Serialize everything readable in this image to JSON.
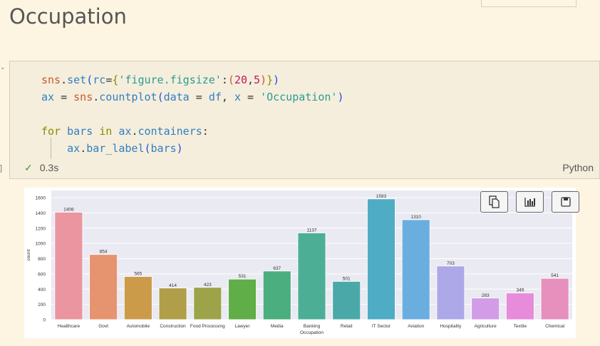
{
  "section_title": "Occupation",
  "cell": {
    "code_lines": [
      [
        [
          "f",
          "sns"
        ],
        [
          "",
          "."
        ],
        [
          "v",
          "set"
        ],
        [
          "p",
          "("
        ],
        [
          "v",
          "rc"
        ],
        [
          "",
          "="
        ],
        [
          "k",
          "{"
        ],
        [
          "s",
          "'figure.figsize'"
        ],
        [
          "",
          ":"
        ],
        [
          "f",
          "("
        ],
        [
          "n",
          "20"
        ],
        [
          "",
          ","
        ],
        [
          "n",
          "5"
        ],
        [
          "f",
          ")"
        ],
        [
          "k",
          "}"
        ],
        [
          "p",
          ")"
        ]
      ],
      [
        [
          "v",
          "ax"
        ],
        [
          "",
          " = "
        ],
        [
          "f",
          "sns"
        ],
        [
          "",
          "."
        ],
        [
          "v",
          "countplot"
        ],
        [
          "p",
          "("
        ],
        [
          "v",
          "data"
        ],
        [
          "",
          " = "
        ],
        [
          "v",
          "df"
        ],
        [
          "",
          ", "
        ],
        [
          "v",
          "x"
        ],
        [
          "",
          " = "
        ],
        [
          "s",
          "'Occupation'"
        ],
        [
          "p",
          ")"
        ]
      ],
      [],
      [
        [
          "k",
          "for"
        ],
        [
          "",
          " "
        ],
        [
          "v",
          "bars"
        ],
        [
          "",
          " "
        ],
        [
          "k",
          "in"
        ],
        [
          "",
          " "
        ],
        [
          "v",
          "ax"
        ],
        [
          "",
          "."
        ],
        [
          "v",
          "containers"
        ],
        [
          "",
          ":"
        ]
      ],
      [
        [
          "",
          "    "
        ],
        [
          "v",
          "ax"
        ],
        [
          "",
          "."
        ],
        [
          "v",
          "bar_label"
        ],
        [
          "p",
          "("
        ],
        [
          "v",
          "bars"
        ],
        [
          "p",
          ")"
        ]
      ]
    ],
    "status_time": "0.3s",
    "language": "Python"
  },
  "toolbar": {
    "icons": [
      "copy-icon",
      "chart-icon",
      "save-icon"
    ]
  },
  "chart_data": {
    "type": "bar",
    "categories": [
      "Healthcare",
      "Govt",
      "Automobile",
      "Construction",
      "Food Processing",
      "Lawyer",
      "Media",
      "Banking",
      "Retail",
      "IT Sector",
      "Aviation",
      "Hospitality",
      "Agriculture",
      "Textile",
      "Chemical"
    ],
    "values": [
      1408,
      854,
      565,
      414,
      423,
      531,
      637,
      1137,
      501,
      1583,
      1310,
      703,
      283,
      349,
      541
    ],
    "colors": [
      "#ea95a0",
      "#e6946f",
      "#cc9b4a",
      "#b09e48",
      "#9da348",
      "#5fae48",
      "#4aae7e",
      "#4caf95",
      "#4aa9a8",
      "#4eacc4",
      "#6aaee0",
      "#ada8e8",
      "#d39ce6",
      "#e78bdb",
      "#e78fbd"
    ],
    "xlabel": "Occupation",
    "ylabel": "count",
    "yticks": [
      0,
      200,
      400,
      600,
      800,
      1000,
      1200,
      1400,
      1600
    ],
    "ylim": [
      0,
      1650
    ],
    "grid": true
  }
}
